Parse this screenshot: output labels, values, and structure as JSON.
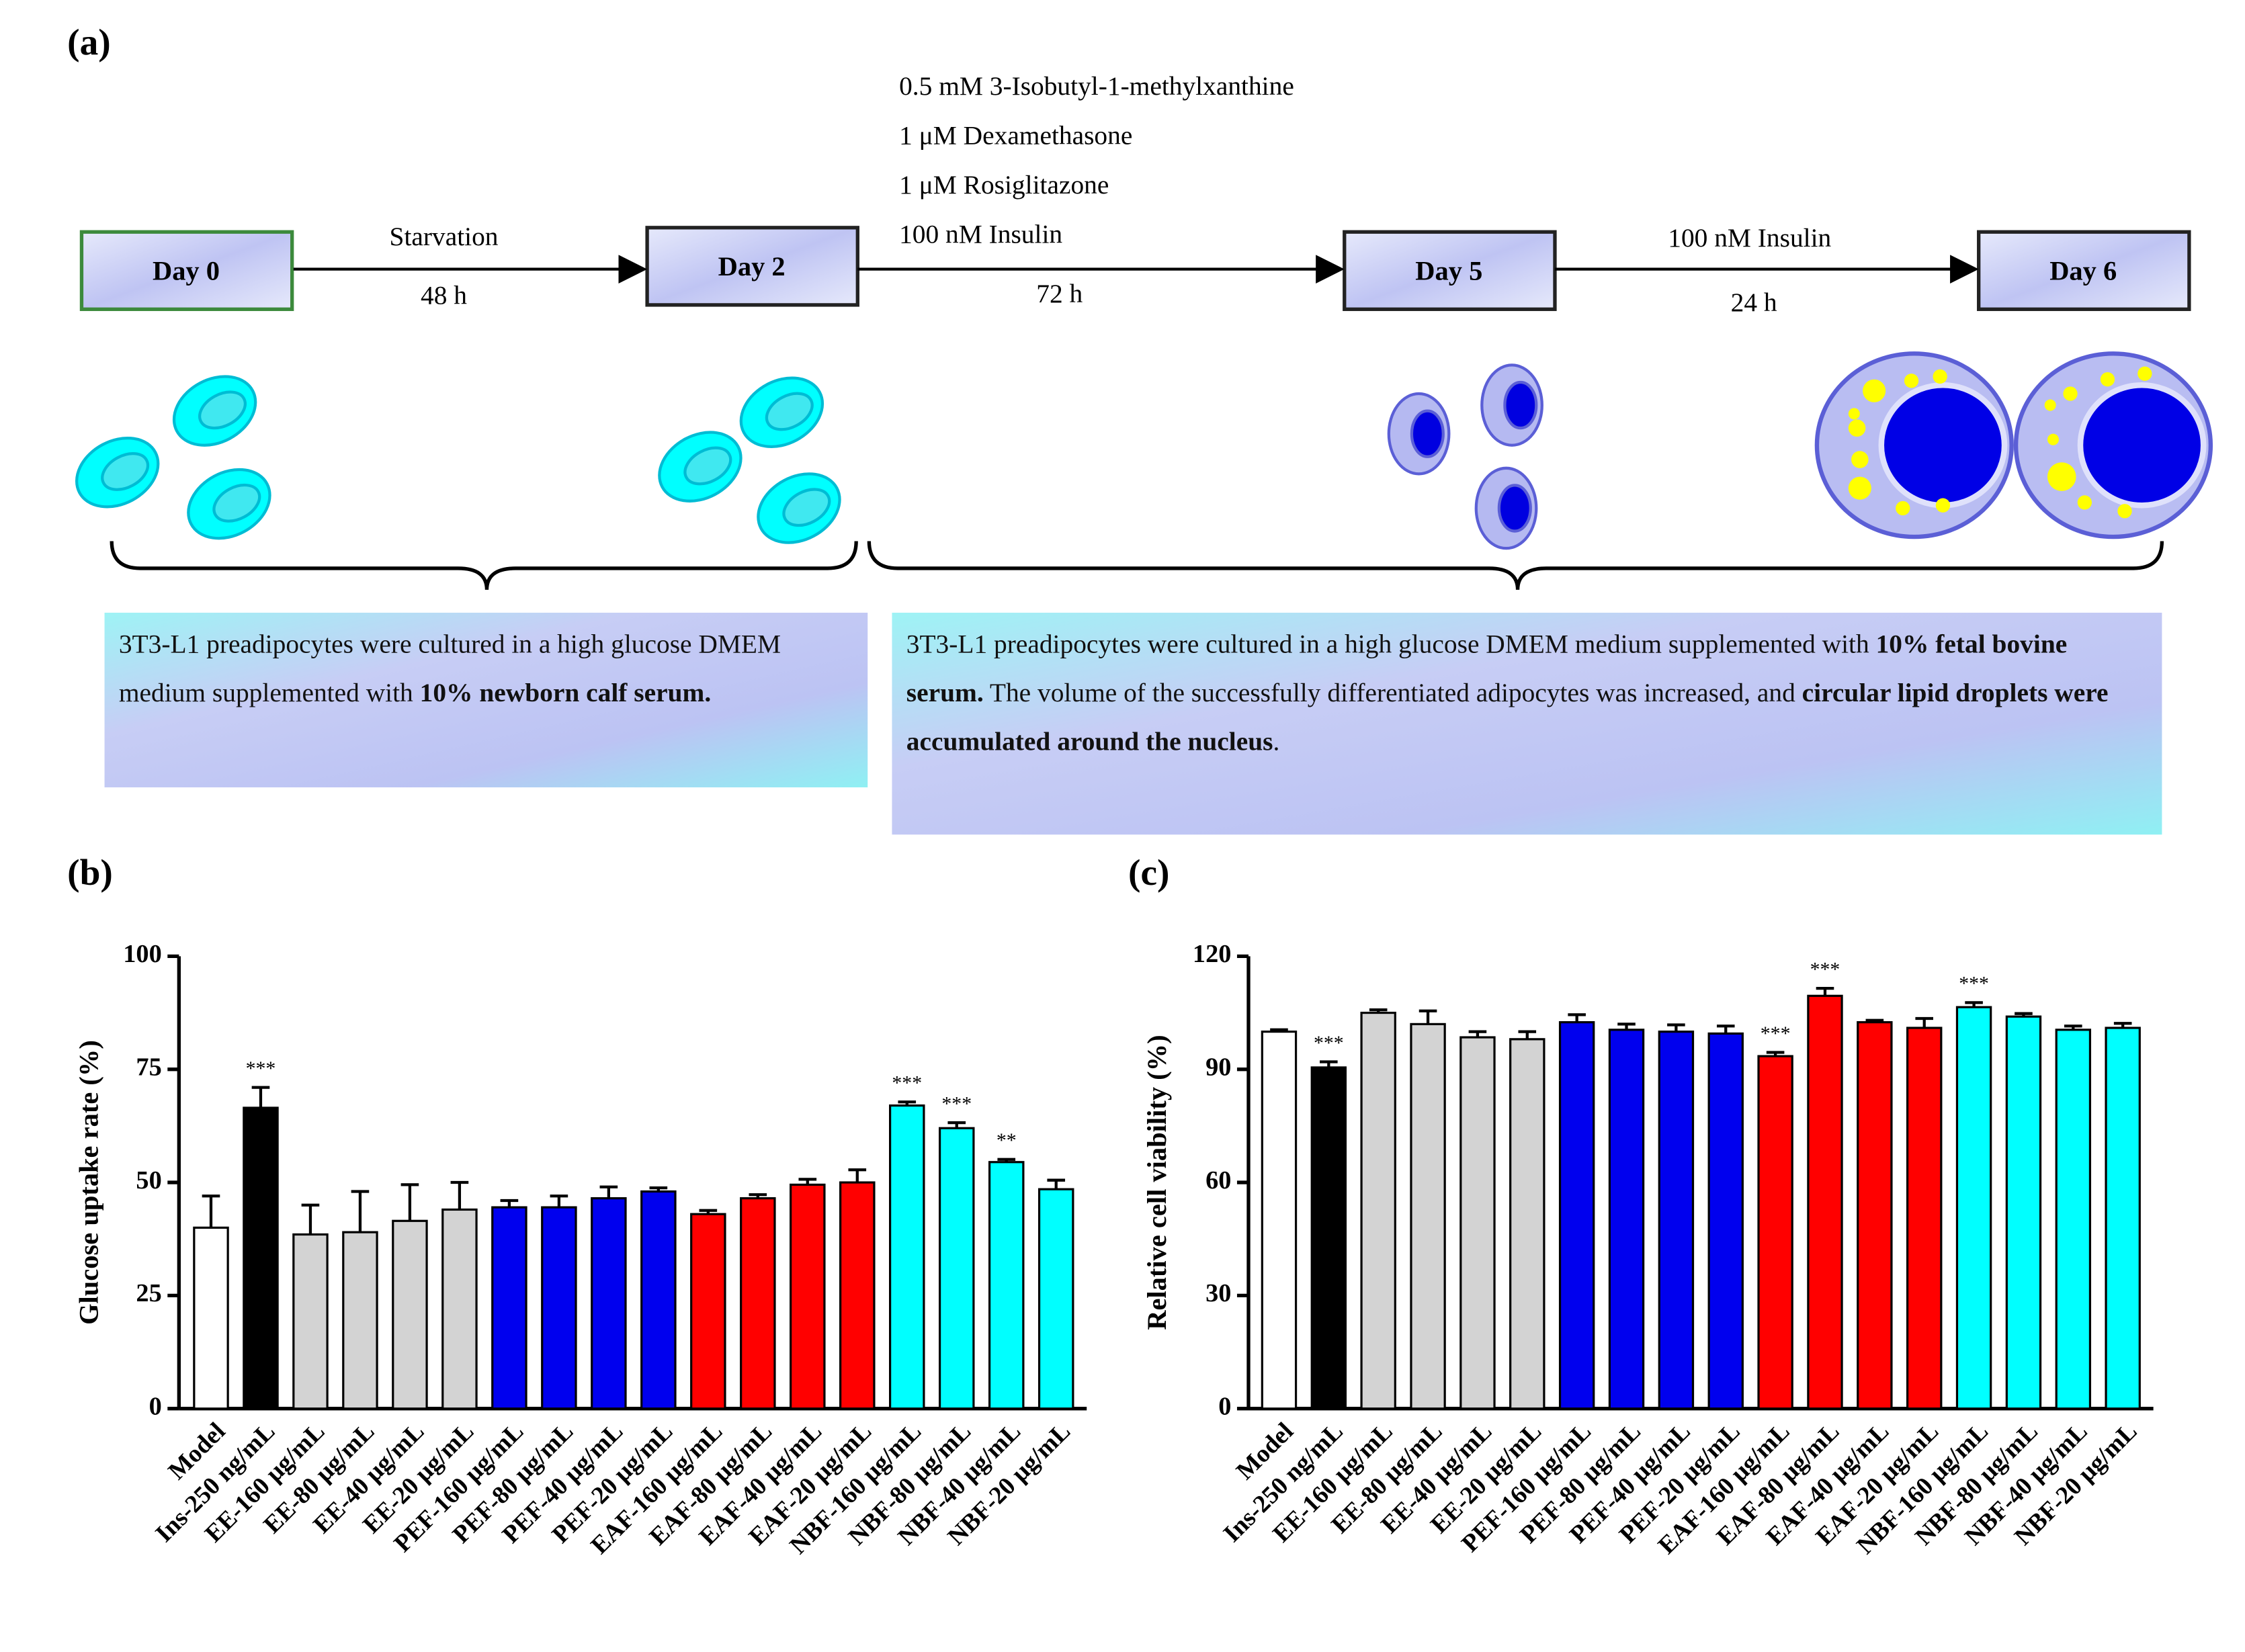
{
  "panel_labels": [
    "(a)",
    "(b)",
    "(c)"
  ],
  "diagram": {
    "days": [
      "Day 0",
      "Day 2",
      "Day 5",
      "Day 6"
    ],
    "steps": [
      {
        "above": [
          "Starvation"
        ],
        "below": "48 h"
      },
      {
        "above": [
          "0.5 mM 3-Isobutyl-1-methylxanthine",
          "1 μM Dexamethasone",
          "1 μM Rosiglitazone",
          "100 nM Insulin"
        ],
        "below": "72 h"
      },
      {
        "above": [
          "100 nM Insulin"
        ],
        "below": "24 h"
      }
    ],
    "notes": [
      [
        {
          "text": "3T3-L1 preadipocytes were cultured in a high glucose DMEM medium supplemented with ",
          "bold": false
        },
        {
          "text": "10% newborn calf serum.",
          "bold": true
        }
      ],
      [
        {
          "text": "3T3-L1 preadipocytes were cultured in  a high glucose DMEM medium supplemented with ",
          "bold": false
        },
        {
          "text": "10% fetal bovine serum.",
          "bold": true
        },
        {
          "text": " The volume of the successfully differentiated adipocytes was increased, and ",
          "bold": false
        },
        {
          "text": "circular lipid droplets were accumulated around the nucleus",
          "bold": true
        },
        {
          "text": ".",
          "bold": false
        }
      ]
    ]
  },
  "chart_data": [
    {
      "type": "bar",
      "y_label": "Glucose uptake rate (%)",
      "categories": [
        "Model",
        "Ins-250 ng/mL",
        "EE-160 μg/mL",
        "EE-80 μg/mL",
        "EE-40 μg/mL",
        "EE-20 μg/mL",
        "PEF-160 μg/mL",
        "PEF-80 μg/mL",
        "PEF-40 μg/mL",
        "PEF-20 μg/mL",
        "EAF-160 μg/mL",
        "EAF-80 μg/mL",
        "EAF-40 μg/mL",
        "EAF-20 μg/mL",
        "NBF-160 μg/mL",
        "NBF-80 μg/mL",
        "NBF-40 μg/mL",
        "NBF-20 μg/mL"
      ],
      "values": [
        40,
        66.5,
        38.5,
        39,
        41.5,
        44,
        44.5,
        44.5,
        46.5,
        48,
        43,
        46.5,
        49.5,
        50,
        67,
        62,
        54.5,
        48.5
      ],
      "errors": [
        7,
        4.5,
        6.5,
        9,
        8,
        6,
        1.5,
        2.5,
        2.5,
        0.8,
        0.8,
        0.8,
        1.2,
        2.8,
        0.8,
        1.2,
        0.6,
        2
      ],
      "significance": [
        null,
        "***",
        null,
        null,
        null,
        null,
        null,
        null,
        null,
        null,
        null,
        null,
        null,
        null,
        "***",
        "***",
        "**",
        null
      ],
      "colors": [
        "#ffffff",
        "#000000",
        "#d3d3d3",
        "#d3d3d3",
        "#d3d3d3",
        "#d3d3d3",
        "#0000ee",
        "#0000ee",
        "#0000ee",
        "#0000ee",
        "#ff0000",
        "#ff0000",
        "#ff0000",
        "#ff0000",
        "#00ffff",
        "#00ffff",
        "#00ffff",
        "#00ffff"
      ],
      "ylim": [
        0,
        100
      ],
      "yticks": [
        0,
        25,
        50,
        75,
        100
      ]
    },
    {
      "type": "bar",
      "y_label": "Relative cell viability (%)",
      "categories": [
        "Model",
        "Ins-250 ng/mL",
        "EE-160 μg/mL",
        "EE-80 μg/mL",
        "EE-40 μg/mL",
        "EE-20 μg/mL",
        "PEF-160 μg/mL",
        "PEF-80 μg/mL",
        "PEF-40 μg/mL",
        "PEF-20 μg/mL",
        "EAF-160 μg/mL",
        "EAF-80 μg/mL",
        "EAF-40 μg/mL",
        "EAF-20 μg/mL",
        "NBF-160 μg/mL",
        "NBF-80 μg/mL",
        "NBF-40 μg/mL",
        "NBF-20 μg/mL"
      ],
      "values": [
        100,
        90.5,
        105,
        102,
        98.5,
        98,
        102.5,
        100.5,
        100,
        99.5,
        93.5,
        109.5,
        102.5,
        101,
        106.5,
        104,
        100.5,
        101
      ],
      "errors": [
        0.5,
        1.5,
        0.8,
        3.5,
        1.5,
        2,
        2,
        1.5,
        1.8,
        2,
        1,
        2,
        0.5,
        2.5,
        1.2,
        0.8,
        1,
        1.2
      ],
      "significance": [
        null,
        "***",
        null,
        null,
        null,
        null,
        null,
        null,
        null,
        null,
        "***",
        "***",
        null,
        null,
        "***",
        null,
        null,
        null
      ],
      "colors": [
        "#ffffff",
        "#000000",
        "#d3d3d3",
        "#d3d3d3",
        "#d3d3d3",
        "#d3d3d3",
        "#0000ee",
        "#0000ee",
        "#0000ee",
        "#0000ee",
        "#ff0000",
        "#ff0000",
        "#ff0000",
        "#ff0000",
        "#00ffff",
        "#00ffff",
        "#00ffff",
        "#00ffff"
      ],
      "ylim": [
        0,
        120
      ],
      "yticks": [
        0,
        30,
        60,
        90,
        120
      ]
    }
  ]
}
